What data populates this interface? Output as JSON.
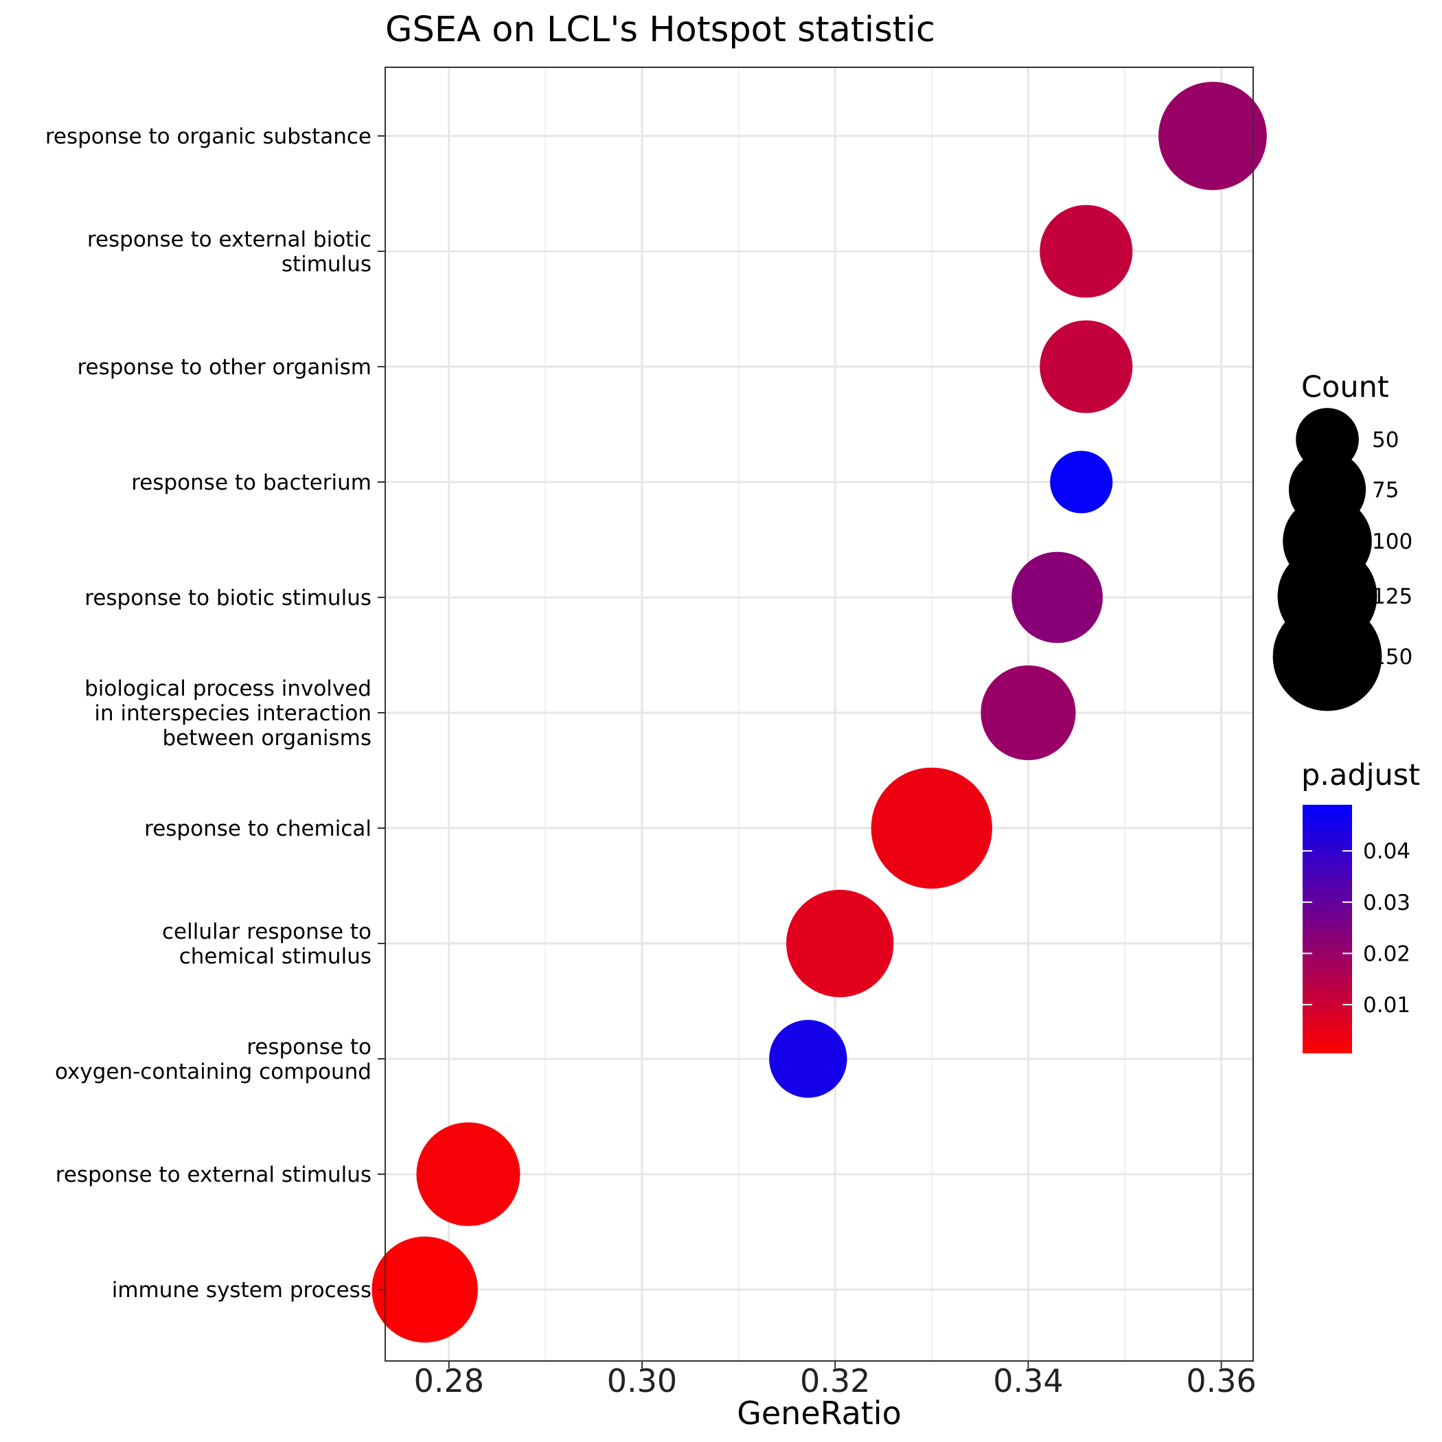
{
  "chart_data": {
    "type": "scatter",
    "title": "GSEA on LCL's Hotspot statistic",
    "xlabel": "GeneRatio",
    "ylabel": "",
    "xlim": [
      0.2734,
      0.3633
    ],
    "xticks": [
      0.28,
      0.3,
      0.32,
      0.34,
      0.36
    ],
    "xtick_labels": [
      "0.28",
      "0.30",
      "0.32",
      "0.34",
      "0.36"
    ],
    "grid": true,
    "categories": [
      [
        "response to organic substance"
      ],
      [
        "response to external biotic",
        "stimulus"
      ],
      [
        "response to other organism"
      ],
      [
        "response to bacterium"
      ],
      [
        "response to biotic stimulus"
      ],
      [
        "biological process involved",
        "in interspecies interaction",
        "between organisms"
      ],
      [
        "response to chemical"
      ],
      [
        "cellular response to",
        "chemical stimulus"
      ],
      [
        "response to",
        "oxygen-containing compound"
      ],
      [
        "response to external stimulus"
      ],
      [
        "immune system process"
      ]
    ],
    "points": [
      {
        "x": 0.3591,
        "count": 120,
        "p_adjust": 0.02
      },
      {
        "x": 0.346,
        "count": 88,
        "p_adjust": 0.012
      },
      {
        "x": 0.346,
        "count": 88,
        "p_adjust": 0.012
      },
      {
        "x": 0.3455,
        "count": 40,
        "p_adjust": 0.048
      },
      {
        "x": 0.343,
        "count": 85,
        "p_adjust": 0.023
      },
      {
        "x": 0.34,
        "count": 92,
        "p_adjust": 0.02
      },
      {
        "x": 0.33,
        "count": 150,
        "p_adjust": 0.004
      },
      {
        "x": 0.3205,
        "count": 118,
        "p_adjust": 0.006
      },
      {
        "x": 0.3172,
        "count": 62,
        "p_adjust": 0.045
      },
      {
        "x": 0.282,
        "count": 110,
        "p_adjust": 0.002
      },
      {
        "x": 0.2775,
        "count": 115,
        "p_adjust": 0.001
      }
    ],
    "legend": {
      "size_title": "Count",
      "size_values": [
        50,
        75,
        100,
        125,
        150
      ],
      "size_labels": [
        "50",
        "75",
        "100",
        "125",
        "150"
      ],
      "color_title": "p.adjust",
      "color_ticks": [
        0.01,
        0.02,
        0.03,
        0.04
      ],
      "color_tick_labels": [
        "0.01",
        "0.02",
        "0.03",
        "0.04"
      ],
      "color_range": [
        0.0005,
        0.049
      ],
      "color_low": "#ff0000",
      "color_high": "#0000ff",
      "placement": "right"
    }
  }
}
